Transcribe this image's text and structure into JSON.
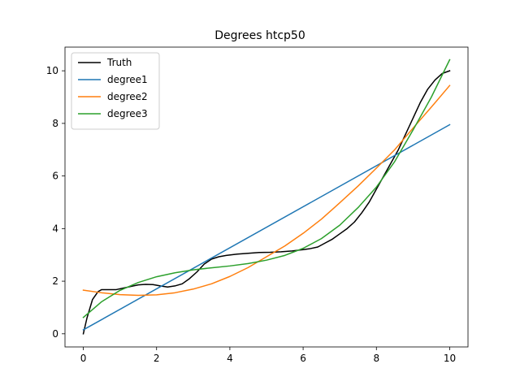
{
  "chart_data": {
    "type": "line",
    "title": "Degrees htcp50",
    "xlabel": "",
    "ylabel": "",
    "xlim": [
      -0.5,
      10.5
    ],
    "ylim": [
      -0.5,
      10.9
    ],
    "x_ticks": [
      0,
      2,
      4,
      6,
      8,
      10
    ],
    "y_ticks": [
      0,
      2,
      4,
      6,
      8,
      10
    ],
    "grid": false,
    "legend_position": "top-left",
    "series": [
      {
        "name": "Truth",
        "color": "#000000",
        "x": [
          0,
          0.1,
          0.25,
          0.4,
          0.5,
          0.7,
          0.9,
          1.1,
          1.3,
          1.5,
          1.7,
          1.9,
          2.1,
          2.3,
          2.5,
          2.7,
          2.9,
          3.1,
          3.3,
          3.5,
          3.7,
          3.9,
          4.2,
          4.5,
          4.8,
          5.1,
          5.4,
          5.7,
          6.0,
          6.2,
          6.4,
          6.6,
          6.8,
          7.0,
          7.2,
          7.4,
          7.6,
          7.8,
          8.0,
          8.2,
          8.4,
          8.6,
          8.8,
          9.0,
          9.2,
          9.4,
          9.6,
          9.8,
          10.0
        ],
        "y": [
          0.0,
          0.6,
          1.3,
          1.6,
          1.68,
          1.68,
          1.68,
          1.74,
          1.8,
          1.86,
          1.88,
          1.87,
          1.82,
          1.78,
          1.82,
          1.9,
          2.1,
          2.35,
          2.65,
          2.84,
          2.93,
          2.98,
          3.03,
          3.06,
          3.09,
          3.1,
          3.12,
          3.15,
          3.2,
          3.24,
          3.3,
          3.45,
          3.6,
          3.8,
          4.0,
          4.25,
          4.6,
          5.0,
          5.5,
          6.0,
          6.5,
          7.0,
          7.6,
          8.2,
          8.8,
          9.3,
          9.65,
          9.9,
          10.0
        ]
      },
      {
        "name": "degree1",
        "color": "#1f77b4",
        "x": [
          0,
          10
        ],
        "y": [
          0.15,
          7.95
        ]
      },
      {
        "name": "degree2",
        "color": "#ff7f0e",
        "x": [
          0,
          0.5,
          1,
          1.5,
          2,
          2.5,
          3,
          3.5,
          4,
          4.5,
          5,
          5.5,
          6,
          6.5,
          7,
          7.5,
          8,
          8.5,
          9,
          9.5,
          10
        ],
        "y": [
          1.66,
          1.56,
          1.49,
          1.46,
          1.48,
          1.56,
          1.7,
          1.9,
          2.18,
          2.52,
          2.93,
          3.34,
          3.82,
          4.36,
          4.98,
          5.62,
          6.3,
          7.0,
          7.82,
          8.62,
          9.44
        ]
      },
      {
        "name": "degree3",
        "color": "#2ca02c",
        "x": [
          0,
          0.5,
          1,
          1.5,
          2,
          2.5,
          3,
          3.5,
          4,
          4.5,
          5,
          5.5,
          6,
          6.5,
          7,
          7.5,
          8,
          8.5,
          9,
          9.5,
          10
        ],
        "y": [
          0.62,
          1.22,
          1.65,
          1.95,
          2.17,
          2.32,
          2.43,
          2.51,
          2.58,
          2.67,
          2.8,
          2.98,
          3.25,
          3.62,
          4.13,
          4.8,
          5.58,
          6.55,
          7.75,
          9.0,
          10.42
        ]
      }
    ]
  }
}
